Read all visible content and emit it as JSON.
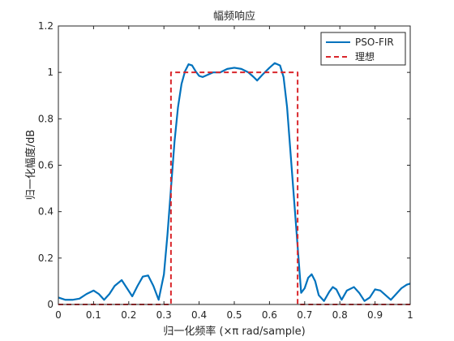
{
  "chart_data": {
    "type": "line",
    "title": "幅频响应",
    "xlabel": "归一化频率 (×π rad/sample)",
    "ylabel": "归一化幅度/dB",
    "xlim": [
      0,
      1
    ],
    "ylim": [
      0,
      1.2
    ],
    "xticks": [
      0,
      0.1,
      0.2,
      0.3,
      0.4,
      0.5,
      0.6,
      0.7,
      0.8,
      0.9,
      1
    ],
    "xtick_labels": [
      "0",
      "0.1",
      "0.2",
      "0.3",
      "0.4",
      "0.5",
      "0.6",
      "0.7",
      "0.8",
      "0.9",
      "1"
    ],
    "yticks": [
      0,
      0.2,
      0.4,
      0.6,
      0.8,
      1,
      1.2
    ],
    "ytick_labels": [
      "0",
      "0.2",
      "0.4",
      "0.6",
      "0.8",
      "1",
      "1.2"
    ],
    "grid": false,
    "legend": {
      "position": "top-right",
      "entries": [
        {
          "name": "PSO-FIR",
          "color": "#0072BD",
          "style": "solid"
        },
        {
          "name": "理想",
          "color": "#D9262B",
          "style": "dashed"
        }
      ]
    },
    "series": [
      {
        "name": "PSO-FIR",
        "color": "#0072BD",
        "style": "solid",
        "x": [
          0,
          0.02,
          0.04,
          0.06,
          0.08,
          0.1,
          0.115,
          0.13,
          0.145,
          0.16,
          0.18,
          0.195,
          0.21,
          0.225,
          0.24,
          0.255,
          0.27,
          0.285,
          0.3,
          0.31,
          0.32,
          0.33,
          0.34,
          0.35,
          0.36,
          0.37,
          0.38,
          0.39,
          0.4,
          0.41,
          0.425,
          0.44,
          0.46,
          0.48,
          0.5,
          0.52,
          0.54,
          0.555,
          0.565,
          0.58,
          0.6,
          0.615,
          0.63,
          0.64,
          0.65,
          0.66,
          0.67,
          0.68,
          0.69,
          0.7,
          0.71,
          0.72,
          0.73,
          0.74,
          0.755,
          0.77,
          0.78,
          0.79,
          0.805,
          0.82,
          0.84,
          0.855,
          0.87,
          0.885,
          0.9,
          0.915,
          0.93,
          0.945,
          0.96,
          0.975,
          0.99,
          1.0
        ],
        "y": [
          0.03,
          0.02,
          0.02,
          0.025,
          0.045,
          0.06,
          0.045,
          0.02,
          0.045,
          0.08,
          0.105,
          0.07,
          0.035,
          0.08,
          0.12,
          0.125,
          0.08,
          0.02,
          0.13,
          0.3,
          0.5,
          0.7,
          0.85,
          0.95,
          1.005,
          1.035,
          1.03,
          1.005,
          0.985,
          0.98,
          0.99,
          1.0,
          1.0,
          1.015,
          1.02,
          1.015,
          1.0,
          0.98,
          0.965,
          0.99,
          1.02,
          1.04,
          1.03,
          0.98,
          0.85,
          0.65,
          0.45,
          0.25,
          0.05,
          0.07,
          0.115,
          0.13,
          0.1,
          0.04,
          0.015,
          0.055,
          0.075,
          0.065,
          0.02,
          0.06,
          0.075,
          0.05,
          0.015,
          0.03,
          0.065,
          0.06,
          0.04,
          0.02,
          0.045,
          0.07,
          0.085,
          0.09
        ]
      },
      {
        "name": "理想",
        "color": "#D9262B",
        "style": "dashed",
        "x": [
          0,
          0.32,
          0.32,
          0.68,
          0.68,
          1.0
        ],
        "y": [
          0,
          0,
          1,
          1,
          0,
          0
        ]
      }
    ]
  }
}
